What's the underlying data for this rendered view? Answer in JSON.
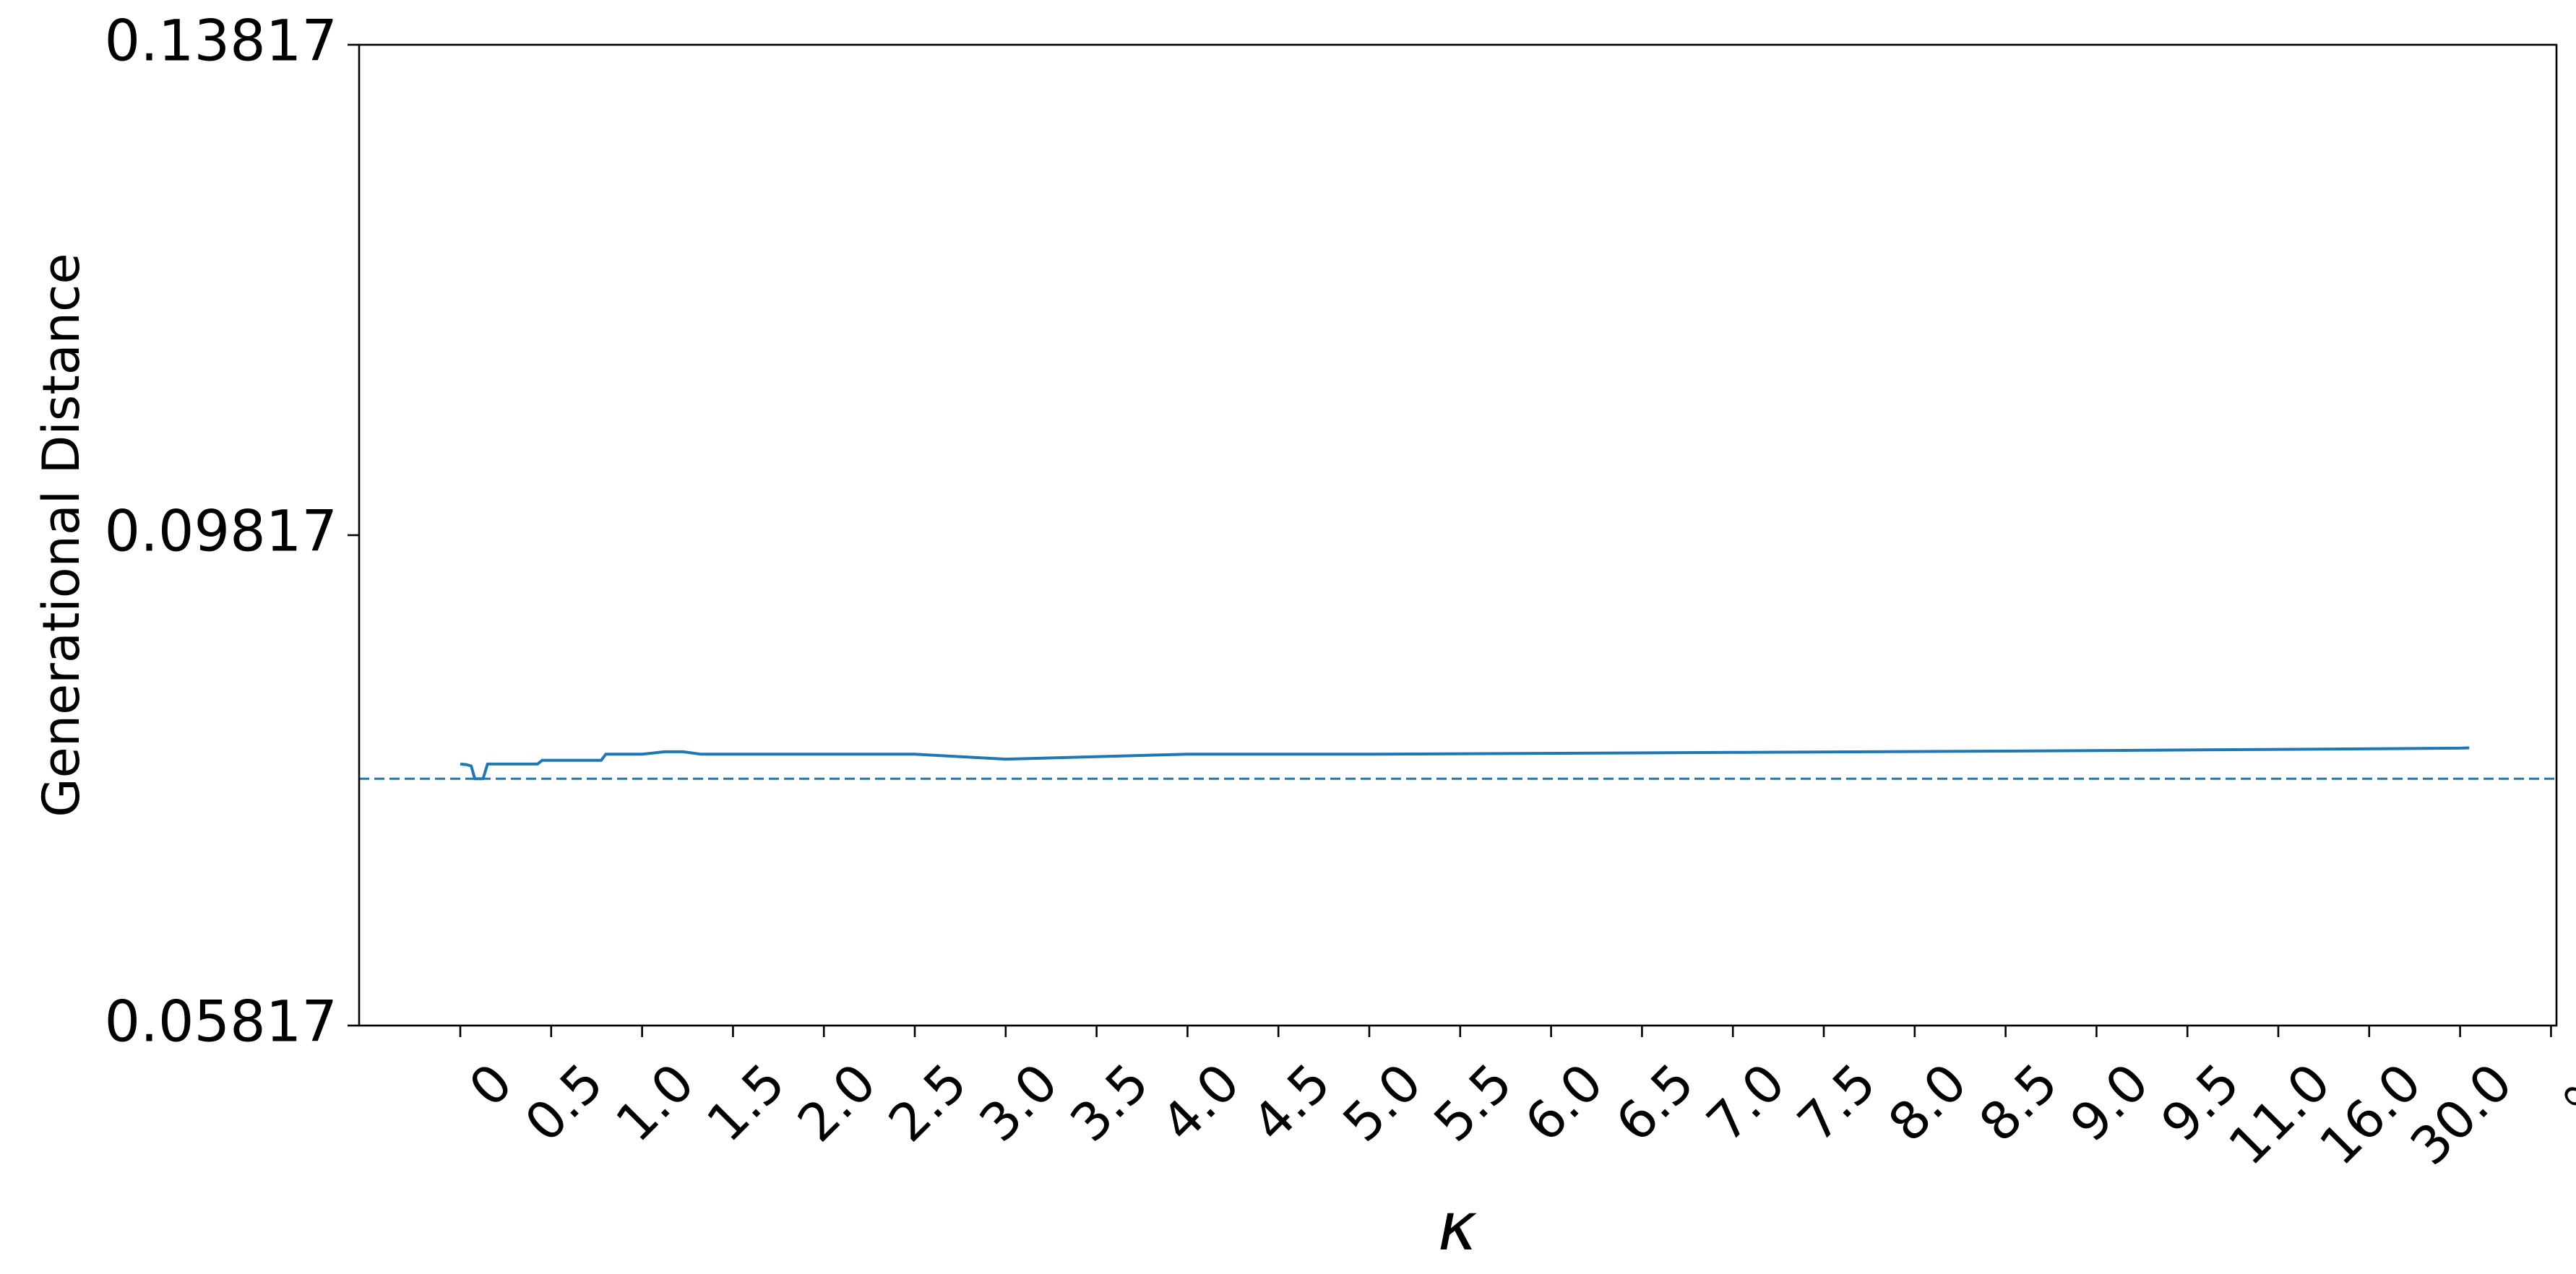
{
  "chart_data": {
    "type": "line",
    "title": "",
    "xlabel": "κ",
    "ylabel": "Generational Distance",
    "ylim": [
      0.05817,
      0.13817
    ],
    "yticks": [
      {
        "value": 0.05817,
        "label": "0.05817"
      },
      {
        "value": 0.09817,
        "label": "0.09817"
      },
      {
        "value": 0.13817,
        "label": "0.13817"
      }
    ],
    "xticks": [
      "0",
      "0.5",
      "1.0",
      "1.5",
      "2.0",
      "2.5",
      "3.0",
      "3.5",
      "4.0",
      "4.5",
      "5.0",
      "5.5",
      "6.0",
      "6.5",
      "7.0",
      "7.5",
      "8.0",
      "8.5",
      "9.0",
      "9.5",
      "11.0",
      "16.0",
      "30.0",
      "∞"
    ],
    "grid": false,
    "legend": "none",
    "series": [
      {
        "color": "#1f77b4",
        "style": "solid",
        "points": [
          {
            "tick_index": 0.0,
            "y": 0.0795
          },
          {
            "tick_index": 0.07,
            "y": 0.07945
          },
          {
            "tick_index": 0.12,
            "y": 0.07935
          },
          {
            "tick_index": 0.16,
            "y": 0.0783
          },
          {
            "tick_index": 0.25,
            "y": 0.0783
          },
          {
            "tick_index": 0.3,
            "y": 0.0795
          },
          {
            "tick_index": 0.85,
            "y": 0.0795
          },
          {
            "tick_index": 0.9,
            "y": 0.0798
          },
          {
            "tick_index": 1.55,
            "y": 0.0798
          },
          {
            "tick_index": 1.6,
            "y": 0.0803
          },
          {
            "tick_index": 2.0,
            "y": 0.0803
          },
          {
            "tick_index": 2.25,
            "y": 0.0805
          },
          {
            "tick_index": 2.45,
            "y": 0.0805
          },
          {
            "tick_index": 2.65,
            "y": 0.0803
          },
          {
            "tick_index": 5.0,
            "y": 0.0803
          },
          {
            "tick_index": 6.0,
            "y": 0.0799
          },
          {
            "tick_index": 8.0,
            "y": 0.0803
          },
          {
            "tick_index": 10.0,
            "y": 0.0803
          },
          {
            "tick_index": 14.0,
            "y": 0.08045
          },
          {
            "tick_index": 18.0,
            "y": 0.0806
          },
          {
            "tick_index": 20.0,
            "y": 0.0807
          },
          {
            "tick_index": 22.0,
            "y": 0.0808
          },
          {
            "tick_index": 22.1,
            "y": 0.08082
          }
        ]
      }
    ],
    "reference_lines": [
      {
        "y": 0.0783,
        "color": "#1f77b4",
        "style": "dashed"
      }
    ]
  }
}
